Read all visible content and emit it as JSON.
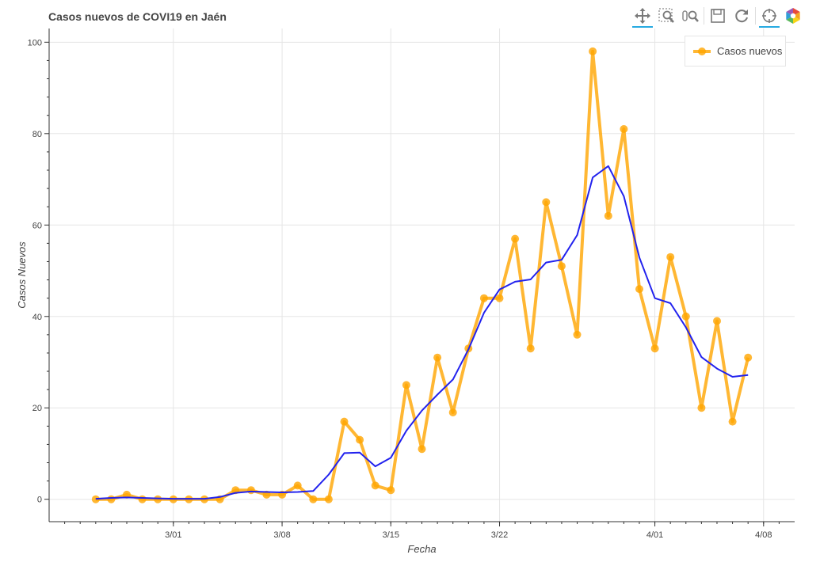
{
  "toolbar": {
    "tools": [
      {
        "name": "pan-tool",
        "icon": "pan-icon",
        "active": true
      },
      {
        "name": "box-zoom-tool",
        "icon": "box-zoom-icon",
        "active": false
      },
      {
        "name": "wheel-zoom-tool",
        "icon": "wheel-zoom-icon",
        "active": false
      },
      {
        "name": "save-tool",
        "icon": "save-icon",
        "active": false
      },
      {
        "name": "reset-tool",
        "icon": "reset-icon",
        "active": false
      },
      {
        "name": "hover-tool",
        "icon": "crosshair-icon",
        "active": true
      },
      {
        "name": "bokeh-logo",
        "icon": "bokeh-logo-icon",
        "active": false
      }
    ]
  },
  "chart_data": {
    "type": "line",
    "title": "Casos nuevos de COVI19 en Jaén",
    "xlabel": "Fecha",
    "ylabel": "Casos Nuevos",
    "x_start_date": "2020-02-25",
    "x_range": [
      "2020-02-22",
      "2020-04-10"
    ],
    "ylim": [
      -4.9,
      103
    ],
    "x_ticks": [
      {
        "date": "2020-03-01",
        "label": "3/01"
      },
      {
        "date": "2020-03-08",
        "label": "3/08"
      },
      {
        "date": "2020-03-15",
        "label": "3/15"
      },
      {
        "date": "2020-03-22",
        "label": "3/22"
      },
      {
        "date": "2020-04-01",
        "label": "4/01"
      },
      {
        "date": "2020-04-08",
        "label": "4/08"
      }
    ],
    "y_ticks": [
      0,
      20,
      40,
      60,
      80,
      100
    ],
    "grid": true,
    "legend_position": "top-right",
    "series": [
      {
        "name": "Casos nuevos",
        "color": "#ffa500",
        "style": "line-markers",
        "values": [
          0,
          0,
          1,
          0,
          0,
          0,
          0,
          0,
          0,
          2,
          2,
          1,
          1,
          3,
          0,
          0,
          17,
          13,
          3,
          2,
          25,
          11,
          31,
          19,
          33,
          44,
          44,
          57,
          33,
          65,
          51,
          36,
          98,
          62,
          81,
          46,
          33,
          53,
          40,
          20,
          39,
          17,
          31
        ]
      },
      {
        "name": "",
        "color": "#2222ee",
        "style": "line",
        "values": [
          0.1,
          0.3,
          0.4,
          0.3,
          0.2,
          0.1,
          0.1,
          0.1,
          0.5,
          1.4,
          1.7,
          1.6,
          1.5,
          1.6,
          1.8,
          5.4,
          10.1,
          10.2,
          7.2,
          9.1,
          15,
          19.4,
          22.9,
          26.2,
          32.8,
          40.8,
          45.9,
          47.6,
          48.1,
          51.8,
          52.4,
          57.8,
          70.4,
          72.9,
          66.3,
          52.9,
          44,
          42.9,
          37.6,
          31.1,
          28.6,
          26.8,
          27.2
        ]
      }
    ]
  }
}
